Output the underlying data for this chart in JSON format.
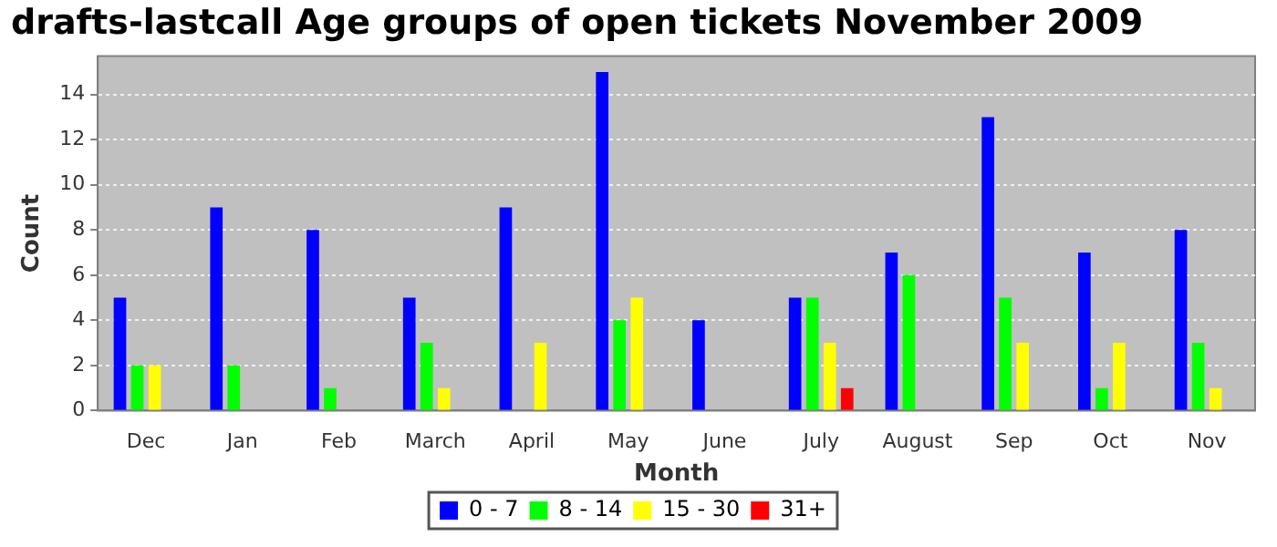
{
  "chart_data": {
    "type": "bar",
    "title": "drafts-lastcall Age groups of open tickets November 2009",
    "xlabel": "Month",
    "ylabel": "Count",
    "categories": [
      "Dec",
      "Jan",
      "Feb",
      "March",
      "April",
      "May",
      "June",
      "July",
      "August",
      "Sep",
      "Oct",
      "Nov"
    ],
    "series": [
      {
        "name": "0 - 7",
        "color": "#0000ff",
        "values": [
          5,
          9,
          8,
          5,
          9,
          15,
          4,
          5,
          7,
          13,
          7,
          8
        ]
      },
      {
        "name": "8 - 14",
        "color": "#00ff00",
        "values": [
          2,
          2,
          1,
          3,
          0,
          4,
          0,
          5,
          6,
          5,
          1,
          3
        ]
      },
      {
        "name": "15 - 30",
        "color": "#ffff00",
        "values": [
          2,
          0,
          0,
          1,
          3,
          5,
          0,
          3,
          0,
          3,
          3,
          1
        ]
      },
      {
        "name": "31+",
        "color": "#ff0000",
        "values": [
          0,
          0,
          0,
          0,
          0,
          0,
          0,
          1,
          0,
          0,
          0,
          0
        ]
      }
    ],
    "ylim": [
      0,
      15.7
    ],
    "yticks": [
      0,
      2,
      4,
      6,
      8,
      10,
      12,
      14
    ],
    "grid": "y",
    "legend": "bottom"
  }
}
